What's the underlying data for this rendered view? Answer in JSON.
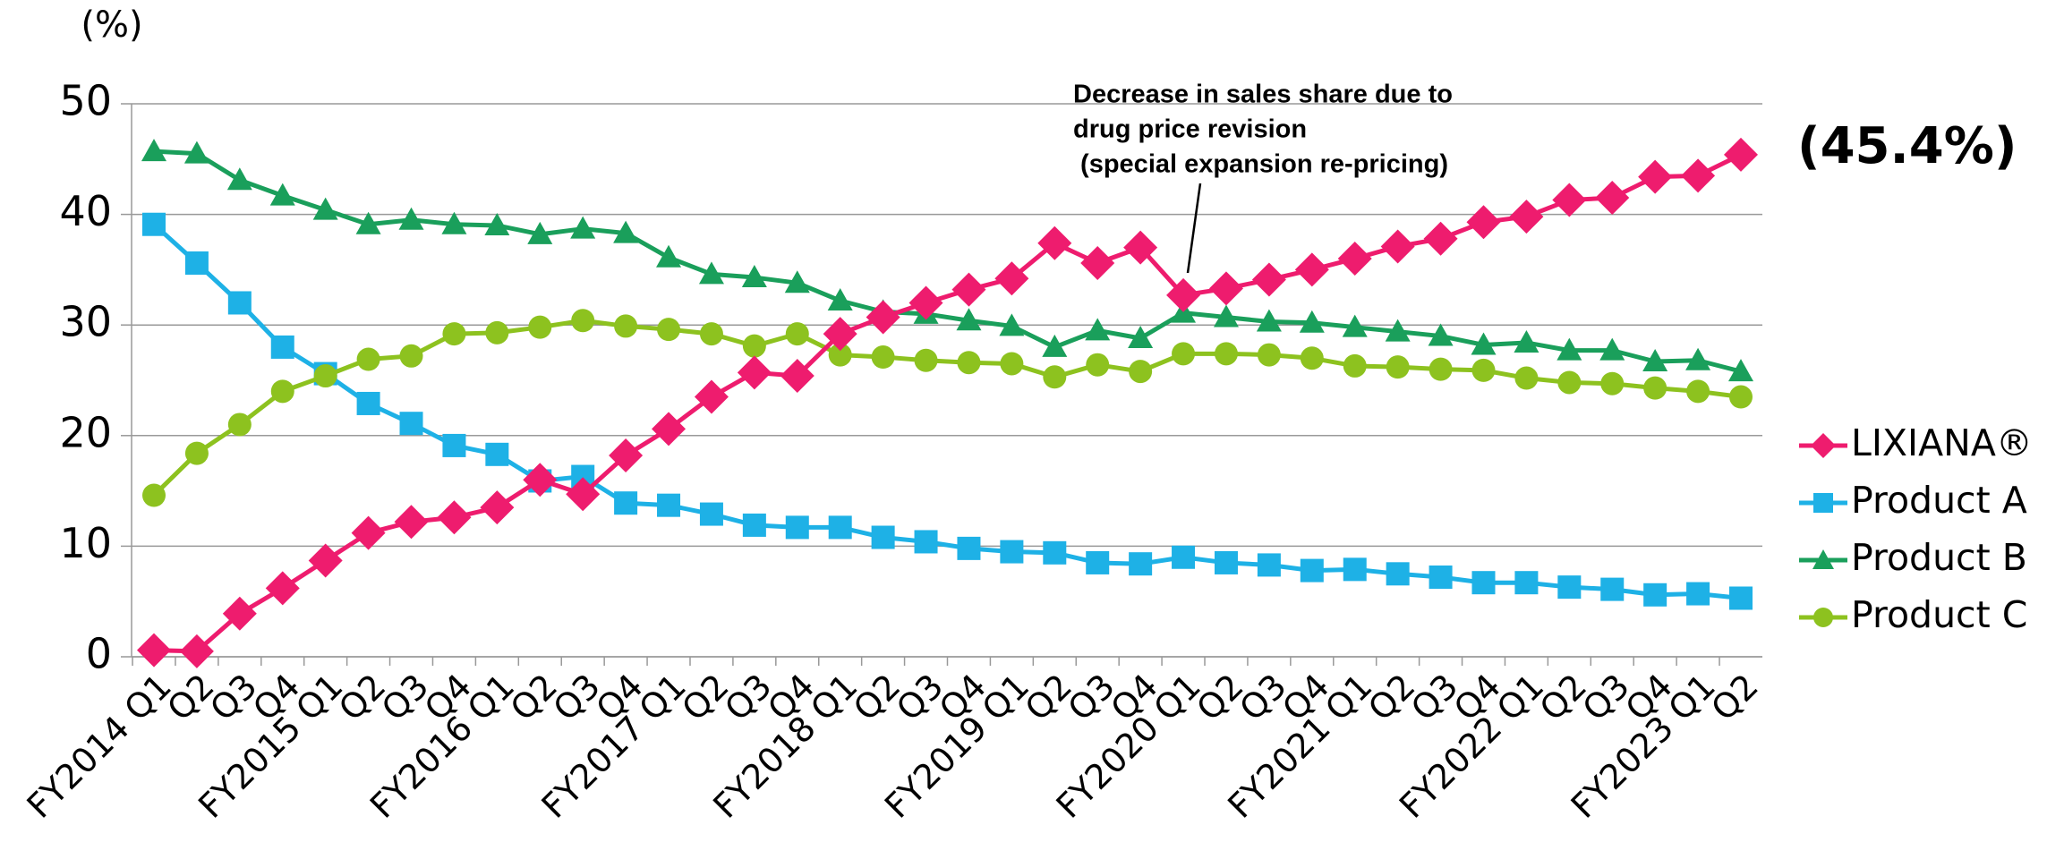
{
  "chart_data": {
    "type": "line",
    "y_label": "(%)",
    "categories": [
      "FY2014 Q1",
      "Q2",
      "Q3",
      "Q4",
      "FY2015 Q1",
      "Q2",
      "Q3",
      "Q4",
      "FY2016 Q1",
      "Q2",
      "Q3",
      "Q4",
      "FY2017 Q1",
      "Q2",
      "Q3",
      "Q4",
      "FY2018 Q1",
      "Q2",
      "Q3",
      "Q4",
      "FY2019 Q1",
      "Q2",
      "Q3",
      "Q4",
      "FY2020 Q1",
      "Q2",
      "Q3",
      "Q4",
      "FY2021 Q1",
      "Q2",
      "Q3",
      "Q4",
      "FY2022 Q1",
      "Q2",
      "Q3",
      "Q4",
      "FY2023 Q1",
      "Q2"
    ],
    "series": [
      {
        "name": "LIXIANA®",
        "color": "#ee1c6e",
        "marker": "diamond",
        "values": [
          0.6,
          0.5,
          3.9,
          6.2,
          8.7,
          11.2,
          12.2,
          12.6,
          13.5,
          16.0,
          14.7,
          18.2,
          20.6,
          23.5,
          25.7,
          25.4,
          29.2,
          30.7,
          32.0,
          33.2,
          34.2,
          37.4,
          35.6,
          37.0,
          32.7,
          33.3,
          34.1,
          35.0,
          36.0,
          37.1,
          37.8,
          39.3,
          39.8,
          41.3,
          41.5,
          43.4,
          43.5,
          45.4
        ]
      },
      {
        "name": "Product A",
        "color": "#1eb1e6",
        "marker": "square",
        "values": [
          39.1,
          35.6,
          32.0,
          28.0,
          25.6,
          22.9,
          21.1,
          19.1,
          18.3,
          15.9,
          16.3,
          13.9,
          13.7,
          12.9,
          11.9,
          11.7,
          11.7,
          10.8,
          10.4,
          9.8,
          9.5,
          9.4,
          8.5,
          8.4,
          9.0,
          8.5,
          8.3,
          7.8,
          7.9,
          7.5,
          7.2,
          6.7,
          6.7,
          6.3,
          6.1,
          5.6,
          5.7,
          5.3
        ]
      },
      {
        "name": "Product B",
        "color": "#1a9f5b",
        "marker": "triangle",
        "values": [
          45.7,
          45.5,
          43.1,
          41.7,
          40.4,
          39.1,
          39.5,
          39.1,
          39.0,
          38.2,
          38.7,
          38.3,
          36.1,
          34.6,
          34.3,
          33.8,
          32.2,
          31.2,
          31.0,
          30.4,
          29.9,
          28.0,
          29.5,
          28.8,
          31.1,
          30.7,
          30.3,
          30.2,
          29.8,
          29.4,
          29.0,
          28.2,
          28.4,
          27.7,
          27.7,
          26.7,
          26.8,
          25.8
        ]
      },
      {
        "name": "Product C",
        "color": "#8dc21f",
        "marker": "circle",
        "values": [
          14.6,
          18.4,
          21.0,
          24.0,
          25.4,
          26.9,
          27.2,
          29.2,
          29.3,
          29.8,
          30.4,
          29.9,
          29.6,
          29.2,
          28.1,
          29.2,
          27.3,
          27.1,
          26.8,
          26.6,
          26.5,
          25.3,
          26.4,
          25.8,
          27.4,
          27.4,
          27.3,
          27.0,
          26.3,
          26.2,
          26.0,
          25.9,
          25.2,
          24.8,
          24.7,
          24.3,
          24.0,
          23.5
        ]
      }
    ],
    "ylim": [
      0,
      50
    ],
    "yticks": [
      0,
      10,
      20,
      30,
      40,
      50
    ],
    "grid": true,
    "annotation": [
      "Decrease in sales share due to",
      "drug price revision",
      " (special expansion re-pricing)"
    ],
    "callout": "(45.4%)",
    "legend": "right"
  }
}
